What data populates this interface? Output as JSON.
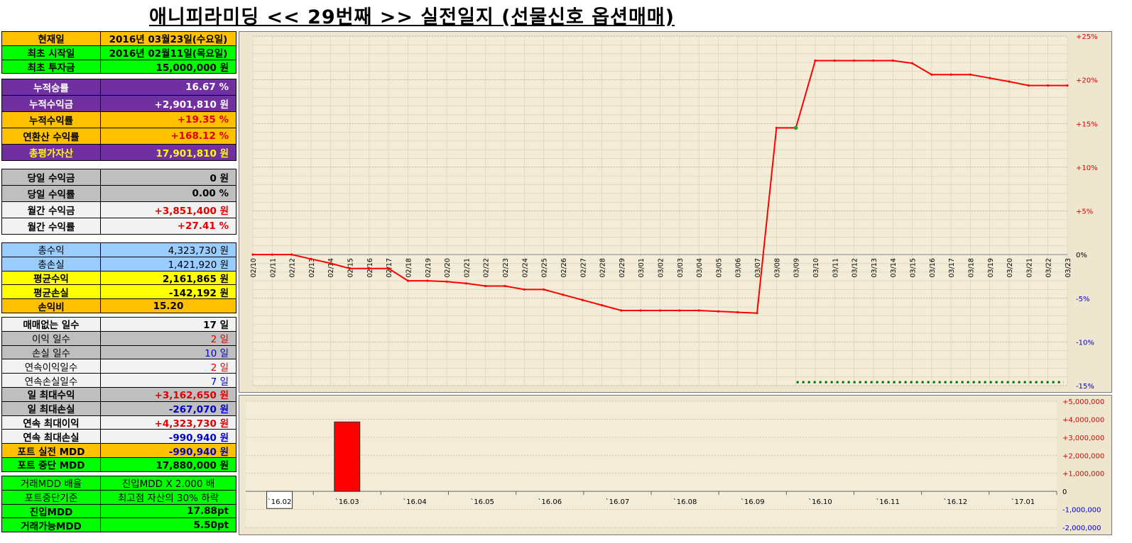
{
  "title": "애니피라미딩 << 29번째 >> 실전일지 (선물신호 옵션매매)",
  "colors": {
    "orange": "#ffc000",
    "green": "#00ff00",
    "purple": "#7030a0",
    "gray": "#bfbfbf",
    "light": "#f2f2f2",
    "blue": "#99ccff",
    "yellow": "#ffff00",
    "line": "#ff0000",
    "bar": "#ff0000",
    "dot": "#006400"
  },
  "g1": [
    {
      "label": "현재일",
      "value": "2016년 03월23일(수요일)",
      "bg": "orange",
      "cls": "black",
      "center": true
    },
    {
      "label": "최초 시작일",
      "value": "2016년 02월11일(목요일)",
      "bg": "green",
      "cls": "black",
      "center": true
    },
    {
      "label": "최초 투자금",
      "value": "15,000,000 원",
      "bg": "green",
      "cls": "black"
    }
  ],
  "g2": [
    {
      "label": "누적승률",
      "value": "16.67 %",
      "bg": "purple",
      "lcls": "white",
      "cls": "white"
    },
    {
      "label": "누적수익금",
      "value": "+2,901,810 원",
      "bg": "purple",
      "lcls": "white",
      "cls": "white"
    },
    {
      "label": "누적수익률",
      "value": "+19.35 %",
      "bg": "orange",
      "cls": "red"
    },
    {
      "label": "연환산 수익률",
      "value": "+168.12 %",
      "bg": "orange",
      "cls": "red"
    },
    {
      "label": "총평가자산",
      "value": "17,901,810 원",
      "bg": "purple",
      "lcls": "yellowt",
      "cls": "yellowt"
    }
  ],
  "g3": [
    {
      "label": "당일 수익금",
      "value": "0 원",
      "bg": "gray",
      "cls": "black"
    },
    {
      "label": "당일 수익률",
      "value": "0.00 %",
      "bg": "gray",
      "cls": "black"
    },
    {
      "label": "월간 수익금",
      "value": "+3,851,400 원",
      "bg": "light",
      "cls": "red"
    },
    {
      "label": "월간 수익률",
      "value": "+27.41 %",
      "bg": "light",
      "cls": "red"
    }
  ],
  "g4": [
    {
      "label": "총수익",
      "value": "4,323,730 원",
      "bg": "blue",
      "cls": "black",
      "normal": true
    },
    {
      "label": "총손실",
      "value": "1,421,920 원",
      "bg": "blue",
      "cls": "black",
      "normal": true
    },
    {
      "label": "평균수익",
      "value": "2,161,865 원",
      "bg": "yellow",
      "cls": "black"
    },
    {
      "label": "평균손실",
      "value": "-142,192 원",
      "bg": "yellow",
      "cls": "black"
    },
    {
      "label": "손익비",
      "value": "15.20",
      "bg": "orange",
      "cls": "black",
      "center": true
    }
  ],
  "g5": [
    {
      "label": "매매없는 일수",
      "value": "17 일",
      "bg": "light",
      "cls": "black"
    },
    {
      "label": "이익 일수",
      "value": "2 일",
      "bg": "gray",
      "cls": "red",
      "normal": true
    },
    {
      "label": "손실 일수",
      "value": "10 일",
      "bg": "gray",
      "cls": "blue",
      "normal": true
    },
    {
      "label": "연속이익일수",
      "value": "2 일",
      "bg": "light",
      "cls": "red",
      "normal": true
    },
    {
      "label": "연속손실일수",
      "value": "7 일",
      "bg": "light",
      "cls": "blue",
      "normal": true
    },
    {
      "label": "일 최대수익",
      "value": "+3,162,650 원",
      "bg": "gray",
      "cls": "red"
    },
    {
      "label": "일 최대손실",
      "value": "-267,070 원",
      "bg": "gray",
      "cls": "blue"
    },
    {
      "label": "연속 최대이익",
      "value": "+4,323,730 원",
      "bg": "light",
      "cls": "red"
    },
    {
      "label": "연속 최대손실",
      "value": "-990,940 원",
      "bg": "light",
      "cls": "blue"
    },
    {
      "label": "포트 실전 MDD",
      "value": "-990,940 원",
      "bg": "orange",
      "cls": "blue"
    },
    {
      "label": "포트 중단 MDD",
      "value": "17,880,000 원",
      "bg": "green",
      "cls": "black"
    }
  ],
  "g6": [
    {
      "label": "거래MDD 배율",
      "value": "진입MDD X 2.000 배",
      "bg": "green",
      "cls": "black",
      "center": true,
      "normal": true
    },
    {
      "label": "포트중단기준",
      "value": "최고점 자산의 30% 하락",
      "bg": "green",
      "cls": "black",
      "center": true,
      "normal": true
    },
    {
      "label": "진입MDD",
      "value": "17.88pt",
      "bg": "green",
      "cls": "black"
    },
    {
      "label": "거래가능MDD",
      "value": "5.50pt",
      "bg": "green",
      "cls": "black"
    }
  ],
  "chart_data": [
    {
      "type": "line",
      "x": [
        "02/10",
        "02/11",
        "02/12",
        "02/13",
        "02/14",
        "02/15",
        "02/16",
        "02/17",
        "02/18",
        "02/19",
        "02/20",
        "02/21",
        "02/22",
        "02/23",
        "02/24",
        "02/25",
        "02/26",
        "02/27",
        "02/28",
        "02/29",
        "03/01",
        "03/02",
        "03/03",
        "03/04",
        "03/05",
        "03/06",
        "03/07",
        "03/08",
        "03/09",
        "03/10",
        "03/11",
        "03/12",
        "03/13",
        "03/14",
        "03/15",
        "03/16",
        "03/17",
        "03/18",
        "03/19",
        "03/20",
        "03/21",
        "03/22",
        "03/23"
      ],
      "y": [
        0,
        0,
        0,
        -0.5,
        -1.0,
        -1.6,
        -1.6,
        -1.6,
        -3.0,
        -3.0,
        -3.1,
        -3.3,
        -3.6,
        -3.6,
        -4.0,
        -4.0,
        -4.6,
        -5.2,
        -5.8,
        -6.4,
        -6.4,
        -6.4,
        -6.4,
        -6.4,
        -6.5,
        -6.6,
        -6.7,
        14.5,
        14.5,
        22.2,
        22.2,
        22.2,
        22.2,
        22.2,
        21.9,
        20.6,
        20.6,
        20.6,
        20.2,
        19.8,
        19.35,
        19.35,
        19.35
      ],
      "y_ticks": [
        "+25%",
        "+20%",
        "+15%",
        "+10%",
        "+5%",
        "0%",
        "-5%",
        "-10%",
        "-15%"
      ],
      "ylim": [
        -15,
        25
      ],
      "dotted_line": {
        "y": -14.6,
        "from": "03/09",
        "to": "03/23"
      }
    },
    {
      "type": "bar",
      "categories": [
        "`16.02",
        "`16.03",
        "`16.04",
        "`16.05",
        "`16.06",
        "`16.07",
        "`16.08",
        "`16.09",
        "`16.10",
        "`16.11",
        "`16.12",
        "`17.01"
      ],
      "values": [
        -949590,
        3851400,
        0,
        0,
        0,
        0,
        0,
        0,
        0,
        0,
        0,
        0
      ],
      "y_ticks": [
        "+5,000,000",
        "+4,000,000",
        "+3,000,000",
        "+2,000,000",
        "+1,000,000",
        "0",
        "-1,000,000",
        "-2,000,000"
      ],
      "ylim": [
        -2000000,
        5000000
      ]
    }
  ]
}
